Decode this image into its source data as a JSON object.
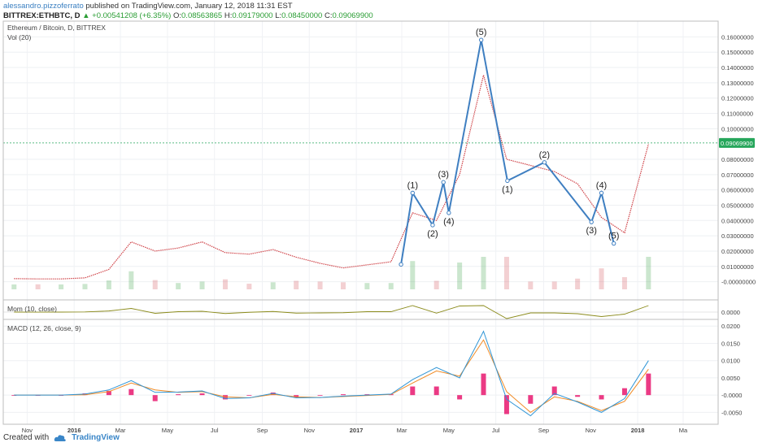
{
  "header": {
    "author": "alessandro.pizzoferrato",
    "published": "published on TradingView.com, January 12, 2018 11:31 EST",
    "symbol": "BITTREX:ETHBTC, D",
    "change": "▲ +0.00541208 (+6.35%)",
    "open_label": "O:",
    "open": "0.08563865",
    "high_label": "H:",
    "high": "0.09179000",
    "low_label": "L:",
    "low": "0.08450000",
    "close_label": "C:",
    "close": "0.09069900",
    "last_price": "0.09069900"
  },
  "footer": {
    "created_with": "Created with",
    "brand": "TradingView"
  },
  "colors": {
    "wave": "#3f7fc1",
    "up": "#2e9c3c",
    "down": "#d0454a",
    "mom": "#8b8b1b",
    "macd": "#2f95d6",
    "signal": "#f08a24",
    "hist": "#e8176e",
    "last": "#26a65b"
  },
  "chart_data": [
    {
      "type": "line",
      "title": "Ethereum / Bitcoin, D, BITTREX",
      "subtitle": "Vol (20)",
      "x": [
        "2015-10",
        "2015-11",
        "2015-12",
        "2016-01",
        "2016-02",
        "2016-03",
        "2016-04",
        "2016-05",
        "2016-06",
        "2016-07",
        "2016-08",
        "2016-09",
        "2016-10",
        "2016-11",
        "2016-12",
        "2017-01",
        "2017-02",
        "2017-03",
        "2017-04",
        "2017-05",
        "2017-06",
        "2017-07",
        "2017-08",
        "2017-09",
        "2017-10",
        "2017-11",
        "2017-12",
        "2018-01"
      ],
      "series": [
        {
          "values": [
            0.002,
            0.0018,
            0.0018,
            0.0025,
            0.008,
            0.026,
            0.02,
            0.022,
            0.026,
            0.019,
            0.018,
            0.021,
            0.016,
            0.012,
            0.009,
            0.011,
            0.013,
            0.045,
            0.04,
            0.07,
            0.135,
            0.08,
            0.076,
            0.072,
            0.064,
            0.042,
            0.032,
            0.09
          ]
        }
      ],
      "wave_points": [
        {
          "date": "2017-02-28",
          "value": 0.0113,
          "label": ""
        },
        {
          "date": "2017-03-15",
          "value": 0.058,
          "label": "(1)"
        },
        {
          "date": "2017-04-10",
          "value": 0.037,
          "label": "(2)"
        },
        {
          "date": "2017-04-24",
          "value": 0.065,
          "label": "(3)"
        },
        {
          "date": "2017-05-01",
          "value": 0.045,
          "label": "(4)"
        },
        {
          "date": "2017-06-12",
          "value": 0.158,
          "label": "(5)"
        },
        {
          "date": "2017-07-16",
          "value": 0.066,
          "label": "(1)"
        },
        {
          "date": "2017-09-02",
          "value": 0.078,
          "label": "(2)"
        },
        {
          "date": "2017-11-02",
          "value": 0.039,
          "label": "(3)"
        },
        {
          "date": "2017-11-15",
          "value": 0.058,
          "label": "(4)"
        },
        {
          "date": "2017-12-01",
          "value": 0.025,
          "label": "(5)"
        }
      ],
      "ylim": [
        -0.005,
        0.165
      ],
      "yticks": [
        "0.16000000",
        "0.15000000",
        "0.14000000",
        "0.13000000",
        "0.12000000",
        "0.11000000",
        "0.10000000",
        "0.08000000",
        "0.07000000",
        "0.06000000",
        "0.05000000",
        "0.04000000",
        "0.03000000",
        "0.02000000",
        "0.01000000",
        "-0.00000000"
      ],
      "last_value": 0.090699,
      "grid": true
    },
    {
      "type": "line",
      "title": "Mom (10, close)",
      "yticks": [
        "0.0000"
      ],
      "grid": true
    },
    {
      "type": "line",
      "title": "MACD (12, 26, close, 9)",
      "x": [
        "2015-10",
        "2015-11",
        "2015-12",
        "2016-01",
        "2016-02",
        "2016-03",
        "2016-04",
        "2016-05",
        "2016-06",
        "2016-07",
        "2016-08",
        "2016-09",
        "2016-10",
        "2016-11",
        "2016-12",
        "2017-01",
        "2017-02",
        "2017-03",
        "2017-04",
        "2017-05",
        "2017-06",
        "2017-07",
        "2017-08",
        "2017-09",
        "2017-10",
        "2017-11",
        "2017-12",
        "2018-01"
      ],
      "series": [
        {
          "name": "MACD",
          "values": [
            0.0,
            0.0,
            0.0,
            0.0003,
            0.0015,
            0.0042,
            0.0008,
            0.0009,
            0.0012,
            -0.001,
            -0.0008,
            0.0005,
            -0.0008,
            -0.0007,
            -0.0003,
            0.0,
            0.0003,
            0.0045,
            0.008,
            0.005,
            0.0185,
            -0.0012,
            -0.006,
            0.0005,
            -0.002,
            -0.005,
            -0.001,
            0.01
          ]
        },
        {
          "name": "Signal",
          "values": [
            0.0,
            0.0,
            0.0,
            0.0001,
            0.001,
            0.0035,
            0.0015,
            0.0008,
            0.001,
            -0.0005,
            -0.0008,
            0.0002,
            -0.0005,
            -0.0007,
            -0.0004,
            -0.0001,
            0.0002,
            0.0035,
            0.007,
            0.0055,
            0.016,
            0.001,
            -0.005,
            -0.0005,
            -0.0018,
            -0.0045,
            -0.0018,
            0.0075
          ]
        }
      ],
      "yticks": [
        "0.0200",
        "0.0150",
        "0.0100",
        "0.0050",
        "-0.0000",
        "-0.0050"
      ],
      "grid": true
    }
  ],
  "x_axis_labels": [
    "Nov",
    "2016",
    "Mar",
    "May",
    "Jul",
    "Sep",
    "Nov",
    "2017",
    "Mar",
    "May",
    "Jul",
    "Sep",
    "Nov",
    "2018",
    "Ma"
  ]
}
